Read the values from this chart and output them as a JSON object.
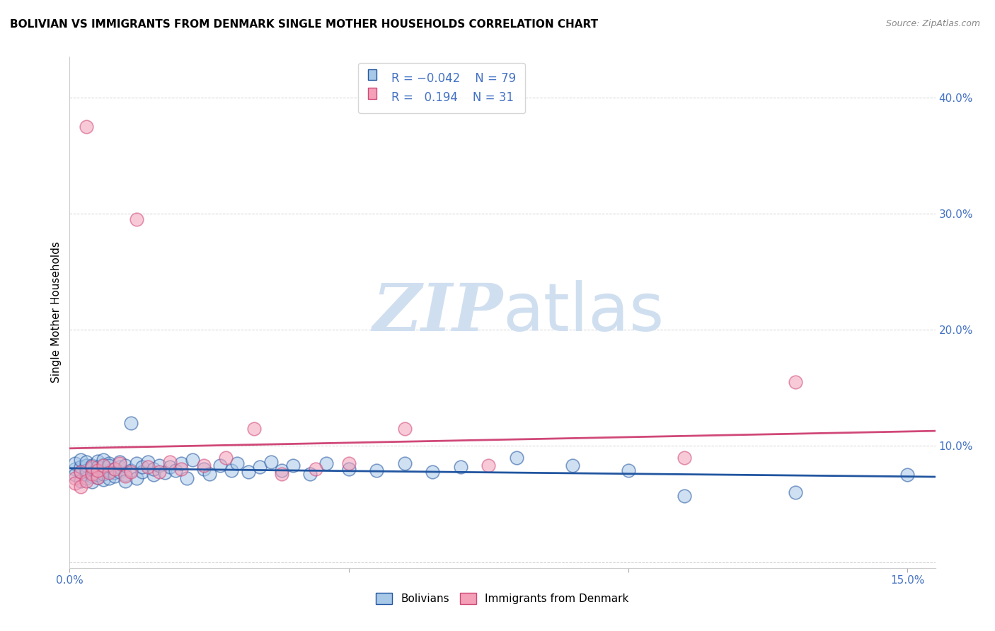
{
  "title": "BOLIVIAN VS IMMIGRANTS FROM DENMARK SINGLE MOTHER HOUSEHOLDS CORRELATION CHART",
  "source": "Source: ZipAtlas.com",
  "ylabel": "Single Mother Households",
  "xlim": [
    0.0,
    0.155
  ],
  "ylim": [
    -0.005,
    0.435
  ],
  "blue_color": "#a8c8e8",
  "pink_color": "#f4a0b8",
  "line_blue": "#2155a0",
  "line_pink": "#d04878",
  "watermark_color": "#d0dff0",
  "title_fontsize": 11,
  "tick_color": "#4472c4",
  "tick_fontsize": 11,
  "bolivians_x": [
    0.001,
    0.001,
    0.001,
    0.002,
    0.002,
    0.002,
    0.002,
    0.003,
    0.003,
    0.003,
    0.003,
    0.003,
    0.004,
    0.004,
    0.004,
    0.004,
    0.004,
    0.005,
    0.005,
    0.005,
    0.005,
    0.005,
    0.006,
    0.006,
    0.006,
    0.006,
    0.006,
    0.007,
    0.007,
    0.007,
    0.007,
    0.008,
    0.008,
    0.008,
    0.009,
    0.009,
    0.009,
    0.01,
    0.01,
    0.01,
    0.011,
    0.011,
    0.012,
    0.012,
    0.013,
    0.013,
    0.014,
    0.015,
    0.015,
    0.016,
    0.017,
    0.018,
    0.019,
    0.02,
    0.021,
    0.022,
    0.024,
    0.025,
    0.027,
    0.029,
    0.03,
    0.032,
    0.034,
    0.036,
    0.038,
    0.04,
    0.043,
    0.046,
    0.05,
    0.055,
    0.06,
    0.065,
    0.07,
    0.08,
    0.09,
    0.1,
    0.11,
    0.13,
    0.15
  ],
  "bolivians_y": [
    0.08,
    0.075,
    0.085,
    0.078,
    0.082,
    0.07,
    0.088,
    0.076,
    0.083,
    0.072,
    0.079,
    0.086,
    0.074,
    0.081,
    0.077,
    0.083,
    0.069,
    0.08,
    0.073,
    0.087,
    0.075,
    0.082,
    0.078,
    0.084,
    0.071,
    0.076,
    0.088,
    0.079,
    0.085,
    0.072,
    0.083,
    0.077,
    0.08,
    0.074,
    0.082,
    0.078,
    0.086,
    0.075,
    0.083,
    0.07,
    0.079,
    0.12,
    0.085,
    0.072,
    0.078,
    0.082,
    0.086,
    0.075,
    0.08,
    0.083,
    0.077,
    0.082,
    0.079,
    0.085,
    0.072,
    0.088,
    0.08,
    0.076,
    0.083,
    0.079,
    0.085,
    0.078,
    0.082,
    0.086,
    0.079,
    0.083,
    0.076,
    0.085,
    0.08,
    0.079,
    0.085,
    0.078,
    0.082,
    0.09,
    0.083,
    0.079,
    0.057,
    0.06,
    0.075
  ],
  "denmark_x": [
    0.001,
    0.001,
    0.002,
    0.002,
    0.003,
    0.003,
    0.004,
    0.004,
    0.005,
    0.005,
    0.006,
    0.007,
    0.008,
    0.009,
    0.01,
    0.011,
    0.012,
    0.014,
    0.016,
    0.018,
    0.02,
    0.024,
    0.028,
    0.033,
    0.038,
    0.044,
    0.05,
    0.06,
    0.075,
    0.11,
    0.13
  ],
  "denmark_y": [
    0.072,
    0.068,
    0.078,
    0.065,
    0.375,
    0.07,
    0.076,
    0.082,
    0.073,
    0.079,
    0.083,
    0.077,
    0.08,
    0.085,
    0.074,
    0.078,
    0.295,
    0.082,
    0.078,
    0.086,
    0.08,
    0.083,
    0.09,
    0.115,
    0.076,
    0.08,
    0.085,
    0.115,
    0.083,
    0.09,
    0.155
  ]
}
